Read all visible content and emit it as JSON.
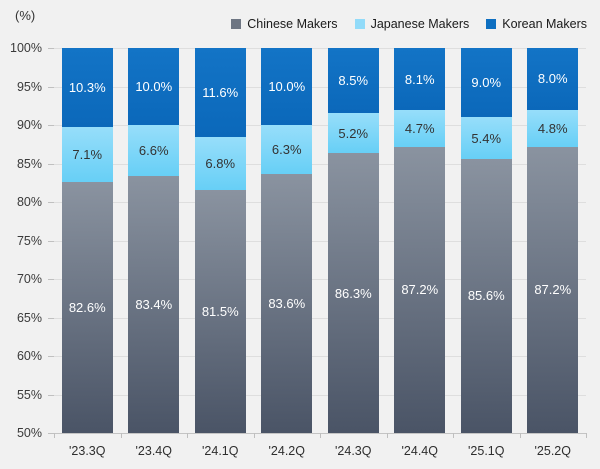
{
  "unit_label": "(%)",
  "legend": [
    {
      "label": "Chinese Makers",
      "color": "#6e7683"
    },
    {
      "label": "Japanese Makers",
      "color": "#92dbf9"
    },
    {
      "label": "Korean Makers",
      "color": "#0e6fc1"
    }
  ],
  "yticks": [
    "100%",
    "95%",
    "90%",
    "85%",
    "80%",
    "75%",
    "70%",
    "65%",
    "60%",
    "55%",
    "50%"
  ],
  "chart_data": {
    "type": "bar",
    "stacked": true,
    "title": "",
    "xlabel": "",
    "ylabel": "(%)",
    "ylim": [
      50,
      100
    ],
    "ytick_step": 5,
    "grid": true,
    "legend_position": "top-right",
    "value_suffix": "%",
    "categories": [
      "'23.3Q",
      "'23.4Q",
      "'24.1Q",
      "'24.2Q",
      "'24.3Q",
      "'24.4Q",
      "'25.1Q",
      "'25.2Q"
    ],
    "series": [
      {
        "name": "Chinese Makers",
        "color_top": "#8a93a0",
        "color_bottom": "#4a5466",
        "values": [
          82.6,
          83.4,
          81.5,
          83.6,
          86.3,
          87.2,
          85.6,
          87.2
        ]
      },
      {
        "name": "Japanese Makers",
        "color_top": "#97defa",
        "color_bottom": "#67cff6",
        "values": [
          7.1,
          6.6,
          6.8,
          6.3,
          5.2,
          4.7,
          5.4,
          4.8
        ]
      },
      {
        "name": "Korean Makers",
        "color_top": "#1374c6",
        "color_bottom": "#0b68ba",
        "values": [
          10.3,
          10.0,
          11.6,
          10.0,
          8.5,
          8.1,
          9.0,
          8.0
        ]
      }
    ]
  }
}
